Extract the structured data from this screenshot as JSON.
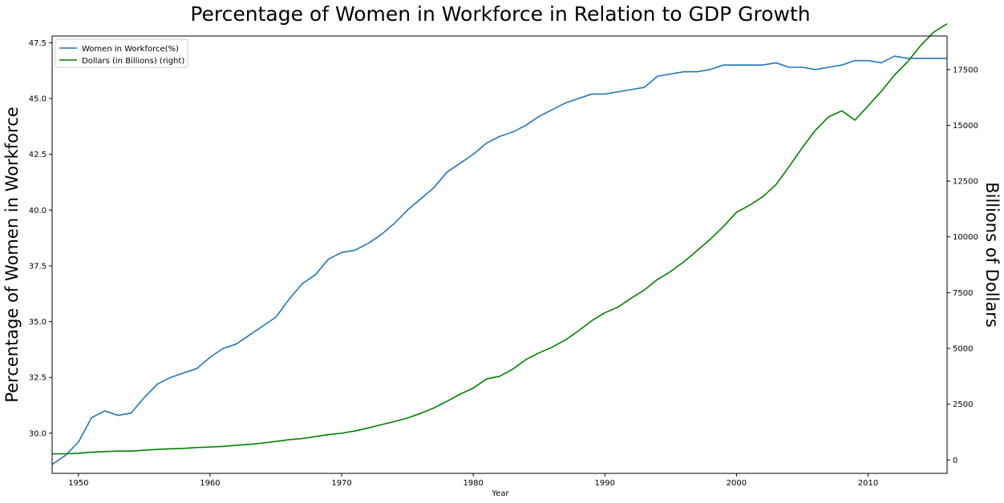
{
  "chart_data": {
    "type": "line",
    "title": "Percentage of Women in Workforce in Relation to GDP Growth",
    "xlabel": "Year",
    "ylabel_left": "Percentage of Women in Workforce",
    "ylabel_right": "Billions of Dollars",
    "xlim": [
      1948,
      2016
    ],
    "ylim_left": [
      28.2,
      47.8
    ],
    "ylim_right": [
      -600,
      19000
    ],
    "xticks": [
      1950,
      1960,
      1970,
      1980,
      1990,
      2000,
      2010
    ],
    "yticks_left": [
      "30.0",
      "32.5",
      "35.0",
      "37.5",
      "40.0",
      "42.5",
      "45.0",
      "47.5"
    ],
    "yticks_right": [
      "0",
      "2500",
      "5000",
      "7500",
      "10000",
      "12500",
      "15000",
      "17500"
    ],
    "grid": false,
    "legend_position": "top-left",
    "x": [
      1948,
      1949,
      1950,
      1951,
      1952,
      1953,
      1954,
      1955,
      1956,
      1957,
      1958,
      1959,
      1960,
      1961,
      1962,
      1963,
      1964,
      1965,
      1966,
      1967,
      1968,
      1969,
      1970,
      1971,
      1972,
      1973,
      1974,
      1975,
      1976,
      1977,
      1978,
      1979,
      1980,
      1981,
      1982,
      1983,
      1984,
      1985,
      1986,
      1987,
      1988,
      1989,
      1990,
      1991,
      1992,
      1993,
      1994,
      1995,
      1996,
      1997,
      1998,
      1999,
      2000,
      2001,
      2002,
      2003,
      2004,
      2005,
      2006,
      2007,
      2008,
      2009,
      2010,
      2011,
      2012,
      2013,
      2014,
      2015,
      2016
    ],
    "series": [
      {
        "name": "Women in Workforce(%)",
        "axis": "left",
        "color": "#1f77b4",
        "values": [
          28.6,
          29.0,
          29.6,
          30.7,
          31.0,
          30.8,
          30.9,
          31.6,
          32.2,
          32.5,
          32.7,
          32.9,
          33.4,
          33.8,
          34.0,
          34.4,
          34.8,
          35.2,
          36.0,
          36.7,
          37.1,
          37.8,
          38.1,
          38.2,
          38.5,
          38.9,
          39.4,
          40.0,
          40.5,
          41.0,
          41.7,
          42.1,
          42.5,
          43.0,
          43.3,
          43.5,
          43.8,
          44.2,
          44.5,
          44.8,
          45.0,
          45.2,
          45.2,
          45.3,
          45.4,
          45.5,
          46.0,
          46.1,
          46.2,
          46.2,
          46.3,
          46.5,
          46.5,
          46.5,
          46.5,
          46.6,
          46.4,
          46.4,
          46.3,
          46.4,
          46.5,
          46.7,
          46.7,
          46.6,
          46.9,
          46.8,
          46.8,
          46.8,
          46.8
        ]
      },
      {
        "name": "Dollars (in Billions) (right)",
        "axis": "right",
        "color": "#008000",
        "values": [
          275,
          275,
          300,
          350,
          375,
          400,
          400,
          440,
          475,
          500,
          520,
          560,
          580,
          610,
          660,
          700,
          760,
          830,
          910,
          960,
          1050,
          1140,
          1200,
          1300,
          1430,
          1580,
          1720,
          1880,
          2090,
          2330,
          2630,
          2950,
          3220,
          3630,
          3750,
          4070,
          4500,
          4800,
          5060,
          5380,
          5790,
          6240,
          6600,
          6850,
          7250,
          7620,
          8090,
          8450,
          8880,
          9380,
          9890,
          10460,
          11100,
          11420,
          11800,
          12340,
          13150,
          14000,
          14780,
          15380,
          15650,
          15230,
          15870,
          16520,
          17250,
          17840,
          18580,
          19180,
          19550
        ]
      }
    ]
  }
}
